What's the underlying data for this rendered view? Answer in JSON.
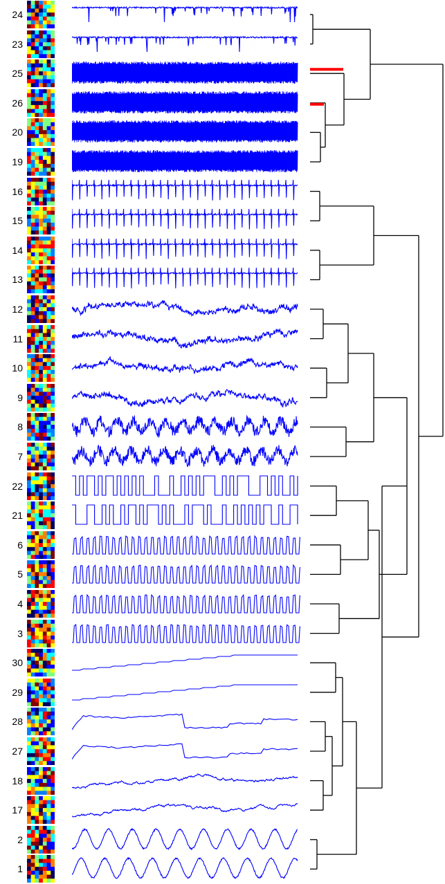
{
  "figure": {
    "rows": [
      {
        "id": "24",
        "kind": "spike-down-sparse"
      },
      {
        "id": "23",
        "kind": "spike-down-sparse"
      },
      {
        "id": "25",
        "kind": "dense-block"
      },
      {
        "id": "26",
        "kind": "dense-block"
      },
      {
        "id": "20",
        "kind": "dense-block"
      },
      {
        "id": "19",
        "kind": "dense-block"
      },
      {
        "id": "16",
        "kind": "periodic-spike"
      },
      {
        "id": "15",
        "kind": "periodic-spike"
      },
      {
        "id": "14",
        "kind": "periodic-spike"
      },
      {
        "id": "13",
        "kind": "periodic-spike"
      },
      {
        "id": "12",
        "kind": "noisy-drift"
      },
      {
        "id": "11",
        "kind": "noisy-drift"
      },
      {
        "id": "10",
        "kind": "noisy-drift"
      },
      {
        "id": "9",
        "kind": "noisy-drift"
      },
      {
        "id": "8",
        "kind": "dense-noise"
      },
      {
        "id": "7",
        "kind": "dense-noise"
      },
      {
        "id": "22",
        "kind": "square-wave"
      },
      {
        "id": "21",
        "kind": "square-wave"
      },
      {
        "id": "6",
        "kind": "pulse-train"
      },
      {
        "id": "5",
        "kind": "pulse-train"
      },
      {
        "id": "4",
        "kind": "pulse-train"
      },
      {
        "id": "3",
        "kind": "pulse-train"
      },
      {
        "id": "30",
        "kind": "rising-step"
      },
      {
        "id": "29",
        "kind": "rising-step"
      },
      {
        "id": "28",
        "kind": "plateau"
      },
      {
        "id": "27",
        "kind": "plateau"
      },
      {
        "id": "18",
        "kind": "slow-noise"
      },
      {
        "id": "17",
        "kind": "slow-noise"
      },
      {
        "id": "2",
        "kind": "sinusoid"
      },
      {
        "id": "1",
        "kind": "sinusoid"
      }
    ],
    "colors": {
      "trace": "#0000ff",
      "tree": "#000000",
      "highlight": "#ff0000",
      "heatmap_palette": [
        "#000060",
        "#0000ff",
        "#0080ff",
        "#00ffff",
        "#80ff80",
        "#ffff00",
        "#ff8000",
        "#ff0000",
        "#800000"
      ]
    },
    "dendrogram": {
      "highlighted_branches": 2
    }
  }
}
